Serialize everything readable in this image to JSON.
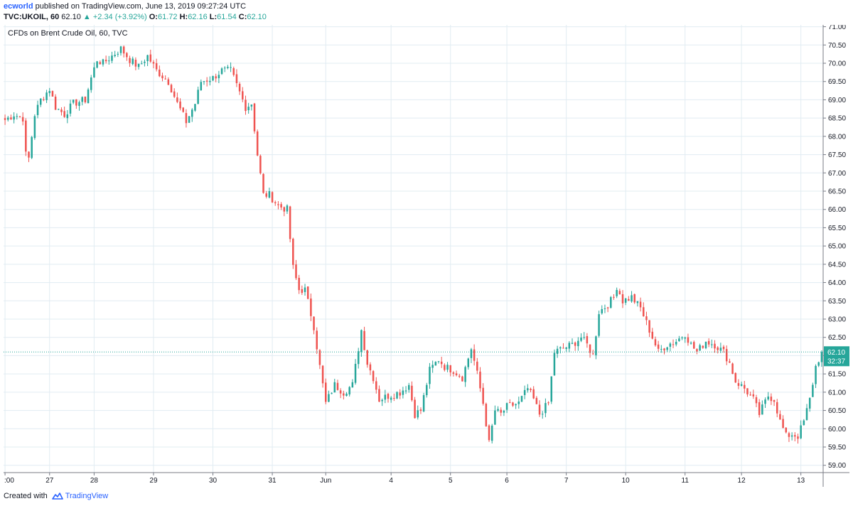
{
  "header": {
    "author": "ecworld",
    "published_text": " published on TradingView.com, June 13, 2019 09:27:24 UTC",
    "symbol": "TVC:UKOIL, 60",
    "last": "62.10",
    "arrow": "▲",
    "change": "+2.34 (+3.92%)",
    "o_label": "O:",
    "o_value": "61.72",
    "h_label": "H:",
    "h_value": "62.16",
    "l_label": "L:",
    "l_value": "61.54",
    "c_label": "C:",
    "c_value": "62.10"
  },
  "footer": {
    "created_with": "Created with",
    "brand": "TradingView"
  },
  "colors": {
    "up": "#26a69a",
    "down": "#ef5350",
    "grid": "#e1ecf2",
    "axis": "#787b86",
    "last_price_bg": "#26a69a"
  },
  "chart_data": {
    "type": "candlestick",
    "title": "CFDs on Brent Crude Oil, 60, TVC",
    "ylim": [
      58.8,
      71.05
    ],
    "y_ticks": [
      "59.00",
      "59.50",
      "60.00",
      "60.50",
      "61.00",
      "61.50",
      "62.00",
      "62.50",
      "63.00",
      "63.50",
      "64.00",
      "64.50",
      "65.00",
      "65.50",
      "66.00",
      "66.50",
      "67.00",
      "67.50",
      "68.00",
      "68.50",
      "69.00",
      "69.50",
      "70.00",
      "70.50",
      "71.00"
    ],
    "x_ticks": [
      {
        "label": ":00",
        "index": 0
      },
      {
        "label": "27",
        "index": 15
      },
      {
        "label": "28",
        "index": 30
      },
      {
        "label": "29",
        "index": 50
      },
      {
        "label": "30",
        "index": 70
      },
      {
        "label": "31",
        "index": 90
      },
      {
        "label": "Jun",
        "index": 108
      },
      {
        "label": "4",
        "index": 130
      },
      {
        "label": "5",
        "index": 150
      },
      {
        "label": "6",
        "index": 169
      },
      {
        "label": "7",
        "index": 189
      },
      {
        "label": "10",
        "index": 209
      },
      {
        "label": "11",
        "index": 229
      },
      {
        "label": "12",
        "index": 248
      },
      {
        "label": "13",
        "index": 268
      }
    ],
    "grid": true,
    "last_price_label": "62.10",
    "countdown_label": "32:37",
    "waypoints": [
      [
        0,
        68.45
      ],
      [
        3,
        68.6
      ],
      [
        6,
        68.5
      ],
      [
        7,
        67.5
      ],
      [
        8,
        67.4
      ],
      [
        10,
        68.6
      ],
      [
        12,
        69.0
      ],
      [
        15,
        69.3
      ],
      [
        17,
        68.8
      ],
      [
        20,
        68.6
      ],
      [
        23,
        68.9
      ],
      [
        27,
        69.0
      ],
      [
        29,
        69.6
      ],
      [
        31,
        70.1
      ],
      [
        33,
        70.0
      ],
      [
        36,
        70.2
      ],
      [
        39,
        70.4
      ],
      [
        42,
        70.1
      ],
      [
        45,
        69.9
      ],
      [
        48,
        70.2
      ],
      [
        51,
        69.8
      ],
      [
        55,
        69.5
      ],
      [
        58,
        68.9
      ],
      [
        61,
        68.4
      ],
      [
        64,
        68.9
      ],
      [
        66,
        69.5
      ],
      [
        70,
        69.6
      ],
      [
        73,
        69.8
      ],
      [
        76,
        69.8
      ],
      [
        78,
        69.4
      ],
      [
        81,
        68.8
      ],
      [
        83,
        68.9
      ],
      [
        85,
        67.5
      ],
      [
        87,
        66.4
      ],
      [
        89,
        66.4
      ],
      [
        92,
        66.1
      ],
      [
        95,
        66.0
      ],
      [
        97,
        64.4
      ],
      [
        99,
        63.8
      ],
      [
        101,
        63.8
      ],
      [
        104,
        62.8
      ],
      [
        106,
        61.7
      ],
      [
        108,
        60.7
      ],
      [
        111,
        61.2
      ],
      [
        114,
        61.0
      ],
      [
        117,
        61.2
      ],
      [
        119,
        62.2
      ],
      [
        120,
        62.7
      ],
      [
        122,
        61.8
      ],
      [
        124,
        61.4
      ],
      [
        126,
        60.8
      ],
      [
        129,
        60.9
      ],
      [
        133,
        61.0
      ],
      [
        136,
        61.2
      ],
      [
        138,
        60.4
      ],
      [
        140,
        60.5
      ],
      [
        143,
        61.6
      ],
      [
        146,
        61.9
      ],
      [
        148,
        61.7
      ],
      [
        151,
        61.6
      ],
      [
        154,
        61.4
      ],
      [
        157,
        62.2
      ],
      [
        159,
        61.5
      ],
      [
        161,
        60.7
      ],
      [
        163,
        59.6
      ],
      [
        165,
        60.5
      ],
      [
        167,
        60.4
      ],
      [
        169,
        60.6
      ],
      [
        173,
        60.7
      ],
      [
        176,
        61.1
      ],
      [
        178,
        60.8
      ],
      [
        180,
        60.4
      ],
      [
        183,
        60.7
      ],
      [
        185,
        62.1
      ],
      [
        188,
        62.2
      ],
      [
        191,
        62.3
      ],
      [
        194,
        62.5
      ],
      [
        196,
        62.3
      ],
      [
        198,
        62.0
      ],
      [
        200,
        63.2
      ],
      [
        203,
        63.4
      ],
      [
        205,
        63.6
      ],
      [
        206,
        63.9
      ],
      [
        208,
        63.5
      ],
      [
        211,
        63.6
      ],
      [
        214,
        63.3
      ],
      [
        216,
        62.9
      ],
      [
        218,
        62.5
      ],
      [
        220,
        62.1
      ],
      [
        223,
        62.3
      ],
      [
        226,
        62.4
      ],
      [
        229,
        62.6
      ],
      [
        231,
        62.3
      ],
      [
        233,
        62.1
      ],
      [
        236,
        62.4
      ],
      [
        239,
        62.3
      ],
      [
        242,
        62.1
      ],
      [
        244,
        61.8
      ],
      [
        246,
        61.3
      ],
      [
        249,
        61.1
      ],
      [
        252,
        60.8
      ],
      [
        254,
        60.4
      ],
      [
        257,
        60.9
      ],
      [
        259,
        60.8
      ],
      [
        261,
        60.2
      ],
      [
        263,
        59.8
      ],
      [
        265,
        59.85
      ],
      [
        267,
        59.8
      ],
      [
        269,
        60.2
      ],
      [
        271,
        60.8
      ],
      [
        273,
        61.7
      ],
      [
        275,
        62.1
      ]
    ]
  }
}
